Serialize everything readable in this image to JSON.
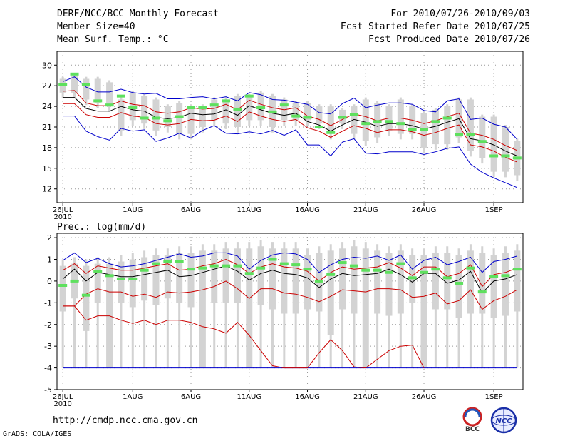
{
  "header": {
    "title": "DERF/NCC/BCC Monthly Forecast",
    "member_size": "Member Size=40",
    "variable": "Mean Surf. Temp.: °C",
    "period": "For 2010/07/26-2010/09/03",
    "start_date": "Fcst Started Refer Date 2010/07/25",
    "produced_date": "Fcst Produced Date 2010/07/26"
  },
  "footer": {
    "url": "http://cmdp.ncc.cma.gov.cn",
    "credit": "GrADS: COLA/IGES",
    "logo_bcc": "BCC",
    "logo_ncc": "NCC"
  },
  "colors": {
    "box": "#d3d3d3",
    "median": "#5ee05e",
    "ensemble_mean": "#000000",
    "spread_band": "#cc0000",
    "range": "#0000cc",
    "grid": "#999999"
  },
  "chart_data": [
    {
      "type": "box-ensemble",
      "title": "Mean Surf. Temp.: °C",
      "x_start_day": 0,
      "days": 40,
      "xticks": [
        {
          "day": 0,
          "label": "26JUL",
          "sub": "2010"
        },
        {
          "day": 6,
          "label": "1AUG"
        },
        {
          "day": 11,
          "label": "6AUG"
        },
        {
          "day": 16,
          "label": "11AUG"
        },
        {
          "day": 21,
          "label": "16AUG"
        },
        {
          "day": 26,
          "label": "21AUG"
        },
        {
          "day": 31,
          "label": "26AUG"
        },
        {
          "day": 37,
          "label": "1SEP"
        }
      ],
      "ylim": [
        10,
        32
      ],
      "yticks": [
        12,
        15,
        18,
        21,
        24,
        27,
        30
      ],
      "series": {
        "box_low": [
          26.0,
          26.0,
          25.0,
          24.5,
          24.0,
          20.5,
          22.0,
          21.5,
          20.5,
          21.0,
          20.0,
          20.0,
          21.0,
          22.0,
          21.5,
          21.0,
          22.0,
          22.0,
          21.0,
          22.0,
          22.0,
          22.0,
          21.5,
          20.0,
          21.5,
          20.0,
          19.0,
          19.5,
          20.5,
          20.0,
          20.0,
          18.0,
          18.5,
          18.5,
          19.5,
          17.5,
          16.5,
          14.5,
          14.5,
          14.0
        ],
        "box_high": [
          28.0,
          28.5,
          28.0,
          28.0,
          27.5,
          25.0,
          26.0,
          25.5,
          25.0,
          24.0,
          24.5,
          24.0,
          24.0,
          25.0,
          25.0,
          25.5,
          25.5,
          26.0,
          25.5,
          25.0,
          24.5,
          24.5,
          24.0,
          24.0,
          23.5,
          24.0,
          25.0,
          24.5,
          24.0,
          25.0,
          24.0,
          23.0,
          23.5,
          24.0,
          25.0,
          25.0,
          22.5,
          22.5,
          21.0,
          19.0
        ],
        "median": [
          27.2,
          28.7,
          27.2,
          24.8,
          24.2,
          25.5,
          23.8,
          22.3,
          22.3,
          21.9,
          22.5,
          23.8,
          23.8,
          24.2,
          24.8,
          23.6,
          25.5,
          23.8,
          23.2,
          24.2,
          22.6,
          22.4,
          21.0,
          20.2,
          22.4,
          22.8,
          21.5,
          21.8,
          21.8,
          21.5,
          20.6,
          20.6,
          21.8,
          22.3,
          19.9,
          19.9,
          18.9,
          16.8,
          16.8,
          16.5
        ],
        "ensemble_mean": [
          25.3,
          25.3,
          23.7,
          23.3,
          23.3,
          24.0,
          23.5,
          23.3,
          22.4,
          22.2,
          22.4,
          23.0,
          22.8,
          22.9,
          23.5,
          22.7,
          24.1,
          23.5,
          23.0,
          22.7,
          23.0,
          21.8,
          21.3,
          20.4,
          21.3,
          22.1,
          21.7,
          21.1,
          21.5,
          21.5,
          21.2,
          20.7,
          21.1,
          21.7,
          22.2,
          19.3,
          19.0,
          18.4,
          17.5,
          16.8
        ],
        "spread_high": [
          26.2,
          26.3,
          24.5,
          24.1,
          24.1,
          24.8,
          24.3,
          24.1,
          23.2,
          23.0,
          23.2,
          23.8,
          23.6,
          23.7,
          24.3,
          23.5,
          24.9,
          24.3,
          23.8,
          23.5,
          23.8,
          22.6,
          22.1,
          21.2,
          22.1,
          22.9,
          22.5,
          21.9,
          22.3,
          22.3,
          22.0,
          21.5,
          21.9,
          22.5,
          23.0,
          20.1,
          19.8,
          19.2,
          18.3,
          17.6
        ],
        "spread_low": [
          24.4,
          24.4,
          22.8,
          22.4,
          22.4,
          23.1,
          22.6,
          22.4,
          21.5,
          21.3,
          21.5,
          22.1,
          21.9,
          22.0,
          22.6,
          21.8,
          23.2,
          22.6,
          22.1,
          21.8,
          22.1,
          20.9,
          20.4,
          19.5,
          20.4,
          21.2,
          20.8,
          20.2,
          20.6,
          20.6,
          20.3,
          19.8,
          20.2,
          20.8,
          21.3,
          18.4,
          18.1,
          17.5,
          16.6,
          15.9
        ],
        "range_high": [
          27.6,
          28.3,
          26.8,
          26.1,
          26.1,
          26.5,
          26.0,
          25.8,
          25.9,
          25.1,
          25.1,
          25.3,
          25.4,
          25.1,
          25.4,
          24.8,
          26.0,
          25.7,
          25.0,
          24.9,
          24.6,
          24.3,
          23.1,
          22.9,
          24.4,
          25.2,
          23.8,
          24.2,
          24.5,
          24.5,
          24.3,
          23.4,
          23.2,
          24.8,
          25.1,
          22.1,
          22.3,
          21.4,
          21.0,
          19.2
        ],
        "range_low": [
          22.6,
          22.6,
          20.4,
          19.6,
          19.1,
          20.8,
          20.4,
          20.6,
          18.9,
          19.4,
          20.1,
          19.4,
          20.5,
          21.2,
          20.1,
          20.0,
          20.3,
          20.0,
          20.5,
          19.8,
          20.6,
          18.4,
          18.4,
          16.8,
          18.8,
          19.3,
          17.2,
          17.1,
          17.4,
          17.4,
          17.4,
          17.0,
          17.4,
          17.9,
          18.1,
          15.6,
          14.4,
          13.6,
          12.9,
          12.2
        ]
      }
    },
    {
      "type": "box-ensemble",
      "title": "Prec.: log(mm/d)",
      "x_start_day": 0,
      "days": 40,
      "xticks": [
        {
          "day": 0,
          "label": "26JUL",
          "sub": "2010"
        },
        {
          "day": 6,
          "label": "1AUG"
        },
        {
          "day": 11,
          "label": "6AUG"
        },
        {
          "day": 16,
          "label": "11AUG"
        },
        {
          "day": 21,
          "label": "16AUG"
        },
        {
          "day": 26,
          "label": "21AUG"
        },
        {
          "day": 31,
          "label": "26AUG"
        },
        {
          "day": 37,
          "label": "1SEP"
        }
      ],
      "ylim": [
        -5,
        2.2
      ],
      "yticks": [
        -5,
        -4,
        -3,
        -2,
        -1,
        0,
        1,
        2
      ],
      "whisker_low": -4.0,
      "series": {
        "box_low": [
          -1.4,
          -0.8,
          -2.3,
          -1.0,
          -4.0,
          -1.0,
          -1.2,
          -0.9,
          -1.1,
          -0.8,
          -1.0,
          -1.2,
          -4.0,
          -1.0,
          -1.0,
          -1.0,
          -4.0,
          -1.1,
          -1.3,
          -1.5,
          -1.5,
          -1.3,
          -1.4,
          -2.5,
          -1.3,
          -1.5,
          -4.0,
          -1.5,
          -1.6,
          -1.5,
          -1.0,
          -4.0,
          -1.3,
          -1.3,
          -1.7,
          -1.5,
          -1.5,
          -1.7,
          -1.6,
          -1.4
        ],
        "box_high": [
          0.7,
          0.8,
          0.7,
          0.8,
          0.8,
          0.9,
          1.0,
          1.1,
          1.2,
          1.2,
          1.3,
          1.3,
          1.4,
          1.4,
          1.5,
          1.5,
          1.5,
          1.6,
          1.5,
          1.5,
          1.5,
          1.2,
          1.3,
          1.4,
          1.5,
          1.6,
          1.5,
          1.4,
          1.3,
          1.4,
          1.2,
          1.2,
          1.3,
          1.3,
          1.2,
          1.4,
          1.3,
          1.2,
          1.3,
          1.4
        ],
        "median": [
          -0.2,
          0.0,
          -0.65,
          0.45,
          0.25,
          0.1,
          0.1,
          0.5,
          0.8,
          0.9,
          0.9,
          0.55,
          0.6,
          0.7,
          0.7,
          0.7,
          0.35,
          0.6,
          1.0,
          0.8,
          0.75,
          0.55,
          0.0,
          0.3,
          0.85,
          0.7,
          0.5,
          0.5,
          0.4,
          0.8,
          0.15,
          0.4,
          0.55,
          0.15,
          -0.1,
          0.6,
          -0.5,
          0.2,
          0.25,
          0.55
        ],
        "ensemble_mean": [
          0.1,
          0.55,
          0.0,
          0.4,
          0.3,
          0.2,
          0.2,
          0.3,
          0.4,
          0.5,
          0.2,
          0.25,
          0.4,
          0.55,
          0.7,
          0.45,
          0.05,
          0.35,
          0.5,
          0.35,
          0.3,
          0.15,
          -0.3,
          0.1,
          0.35,
          0.25,
          0.3,
          0.35,
          0.55,
          0.3,
          -0.05,
          0.35,
          0.35,
          -0.1,
          0.05,
          0.45,
          -0.55,
          0.0,
          0.1,
          0.3
        ],
        "spread_high": [
          0.5,
          0.8,
          0.35,
          0.7,
          0.6,
          0.5,
          0.5,
          0.6,
          0.7,
          0.8,
          0.5,
          0.55,
          0.7,
          0.8,
          1.0,
          0.75,
          0.35,
          0.65,
          0.8,
          0.65,
          0.6,
          0.45,
          0.0,
          0.4,
          0.65,
          0.55,
          0.6,
          0.65,
          0.85,
          0.6,
          0.25,
          0.65,
          0.65,
          0.2,
          0.35,
          0.75,
          -0.25,
          0.3,
          0.4,
          0.6
        ],
        "spread_low": [
          -1.15,
          -1.15,
          -0.6,
          -0.35,
          -0.5,
          -0.5,
          -0.7,
          -0.6,
          -0.75,
          -0.5,
          -0.55,
          -0.5,
          -0.4,
          -0.25,
          0.0,
          -0.35,
          -0.8,
          -0.35,
          -0.35,
          -0.55,
          -0.6,
          -0.75,
          -0.95,
          -0.7,
          -0.4,
          -0.45,
          -0.5,
          -0.35,
          -0.35,
          -0.4,
          -0.75,
          -0.7,
          -0.55,
          -1.05,
          -0.9,
          -0.4,
          -1.3,
          -0.9,
          -0.7,
          -0.4
        ],
        "range_high": [
          0.95,
          1.3,
          0.85,
          1.05,
          0.8,
          0.65,
          0.7,
          0.8,
          0.95,
          1.1,
          1.25,
          1.1,
          1.15,
          1.3,
          1.3,
          1.15,
          0.55,
          0.95,
          1.2,
          1.3,
          1.25,
          1.0,
          0.4,
          0.75,
          1.0,
          1.1,
          1.05,
          1.15,
          0.95,
          1.2,
          0.55,
          0.95,
          1.1,
          0.75,
          0.9,
          1.1,
          0.4,
          0.9,
          1.0,
          1.15
        ],
        "range_low_curve": [
          [
            0,
            -1.15
          ],
          [
            1,
            -1.15
          ],
          [
            2,
            -1.8
          ],
          [
            3,
            -1.6
          ],
          [
            4,
            -1.6
          ],
          [
            5,
            -1.8
          ],
          [
            6,
            -1.95
          ],
          [
            7,
            -1.8
          ],
          [
            8,
            -2.0
          ],
          [
            9,
            -1.8
          ],
          [
            10,
            -1.8
          ],
          [
            11,
            -1.9
          ],
          [
            12,
            -2.1
          ],
          [
            13,
            -2.2
          ],
          [
            14,
            -2.4
          ],
          [
            15,
            -1.9
          ],
          [
            16,
            -2.5
          ],
          [
            17,
            -3.2
          ],
          [
            18,
            -3.9
          ],
          [
            19,
            -4.0
          ],
          [
            20,
            -4.0
          ],
          [
            21,
            -4.0
          ],
          [
            22,
            -3.3
          ],
          [
            23,
            -2.7
          ],
          [
            24,
            -3.2
          ],
          [
            25,
            -3.95
          ],
          [
            26,
            -4.0
          ],
          [
            27,
            -3.6
          ],
          [
            28,
            -3.2
          ],
          [
            29,
            -3.0
          ],
          [
            30,
            -2.95
          ],
          [
            31,
            -4.0
          ]
        ]
      }
    }
  ]
}
